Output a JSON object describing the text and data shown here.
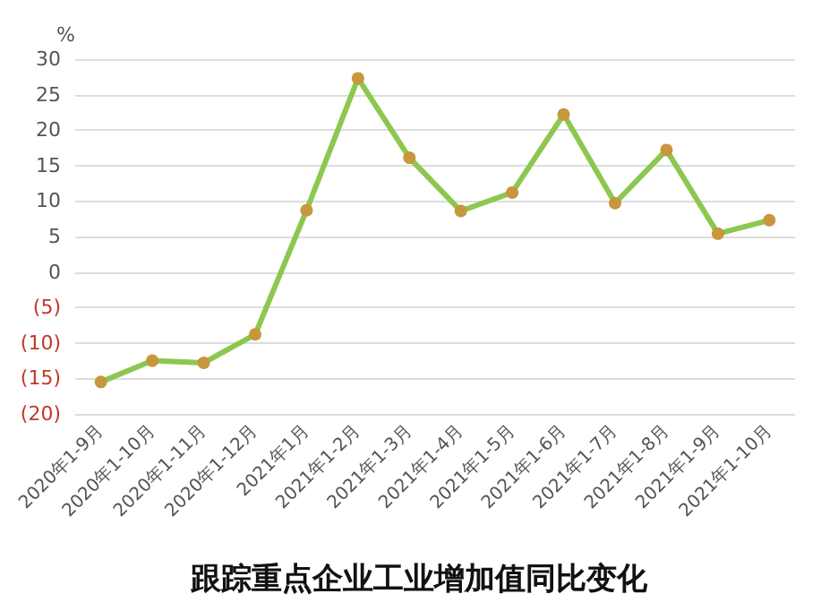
{
  "chart_data": {
    "type": "line",
    "title": "跟踪重点企业工业增加值同比变化",
    "ylabel": "%",
    "categories": [
      "2020年1-9月",
      "2020年1-10月",
      "2020年1-11月",
      "2020年1-12月",
      "2021年1月",
      "2021年1-2月",
      "2021年1-3月",
      "2021年1-4月",
      "2021年1-5月",
      "2021年1-6月",
      "2021年1-7月",
      "2021年1-8月",
      "2021年1-9月",
      "2021年1-10月"
    ],
    "series": [
      {
        "color": "#8cc850",
        "values": [
          -15.5,
          -12.5,
          -12.8,
          -8.8,
          8.7,
          27.3,
          16.1,
          8.6,
          11.2,
          22.2,
          9.7,
          17.2,
          5.4,
          7.3
        ]
      }
    ],
    "ylim": [
      -20,
      30
    ],
    "yticks": [
      {
        "value": -20,
        "label": "(20)"
      },
      {
        "value": -15,
        "label": "(15)"
      },
      {
        "value": -10,
        "label": "(10)"
      },
      {
        "value": -5,
        "label": "(5)"
      },
      0,
      5,
      10,
      15,
      20,
      25,
      30
    ],
    "grid": "y",
    "marker": "circle",
    "line_style": "solid"
  }
}
